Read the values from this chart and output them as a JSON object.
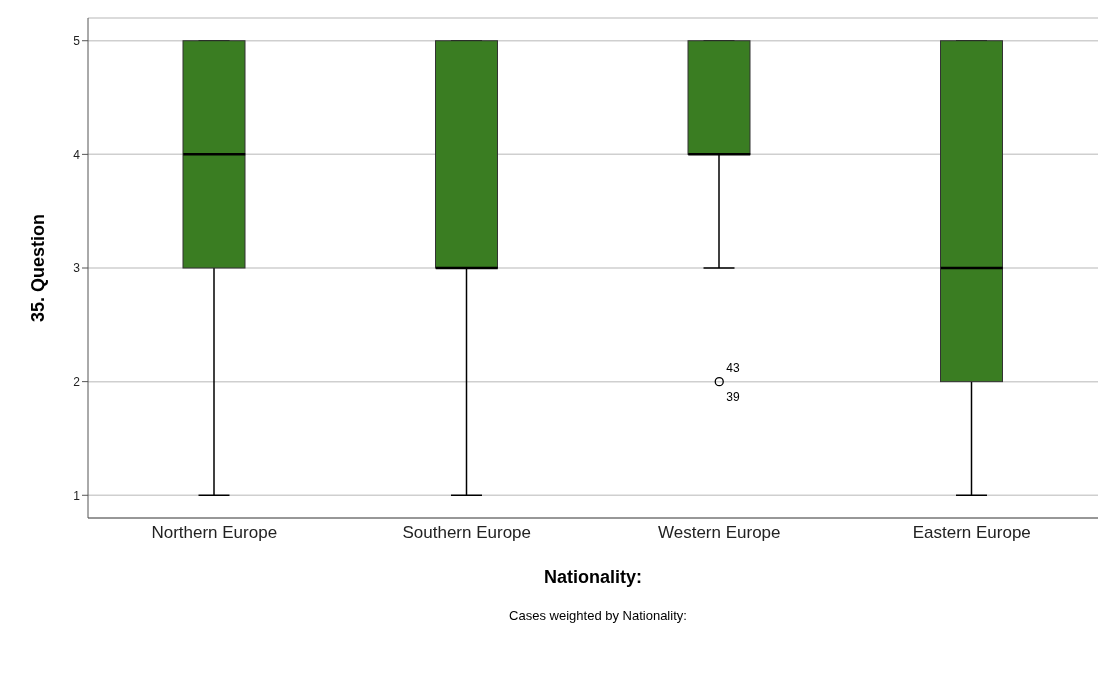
{
  "chart_data": {
    "type": "box",
    "xlabel": "Nationality:",
    "ylabel": "35. Question",
    "categories": [
      "Northern Europe",
      "Southern Europe",
      "Western Europe",
      "Eastern Europe"
    ],
    "color": "#3a7d22",
    "boxes": [
      {
        "low": 1,
        "q1": 3,
        "median": 4,
        "q3": 5,
        "high": 5
      },
      {
        "low": 1,
        "q1": 3,
        "median": 3,
        "q3": 5,
        "high": 5
      },
      {
        "low": 3,
        "q1": 4,
        "median": 4,
        "q3": 5,
        "high": 5,
        "outliers": [
          2
        ]
      },
      {
        "low": 1,
        "q1": 2,
        "median": 3,
        "q3": 5,
        "high": 5
      }
    ],
    "ylim": [
      0.8,
      5.2
    ],
    "yticks": [
      1,
      2,
      3,
      4,
      5
    ],
    "grid": "y",
    "annotations": [
      "43",
      "39",
      "Cases weighted by Nationality:"
    ]
  }
}
